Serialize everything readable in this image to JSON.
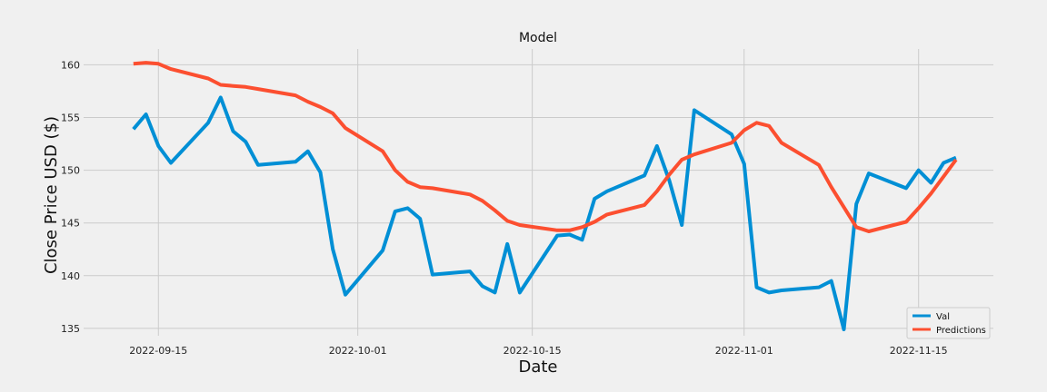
{
  "chart_data": {
    "type": "line",
    "title": "Model",
    "xlabel": "Date",
    "ylabel": "Close Price USD ($)",
    "ylim": [
      134.3,
      161.5
    ],
    "xlim": [
      "2022-09-09",
      "2022-11-21"
    ],
    "y_ticks": [
      135,
      140,
      145,
      150,
      155,
      160
    ],
    "x_ticks": [
      "2022-09-15",
      "2022-10-01",
      "2022-10-15",
      "2022-11-01",
      "2022-11-15"
    ],
    "grid": true,
    "legend_position": "lower-right",
    "x": [
      "2022-09-13",
      "2022-09-14",
      "2022-09-15",
      "2022-09-16",
      "2022-09-19",
      "2022-09-20",
      "2022-09-21",
      "2022-09-22",
      "2022-09-23",
      "2022-09-26",
      "2022-09-27",
      "2022-09-28",
      "2022-09-29",
      "2022-09-30",
      "2022-10-03",
      "2022-10-04",
      "2022-10-05",
      "2022-10-06",
      "2022-10-07",
      "2022-10-10",
      "2022-10-11",
      "2022-10-12",
      "2022-10-13",
      "2022-10-14",
      "2022-10-17",
      "2022-10-18",
      "2022-10-19",
      "2022-10-20",
      "2022-10-21",
      "2022-10-24",
      "2022-10-25",
      "2022-10-26",
      "2022-10-27",
      "2022-10-28",
      "2022-10-31",
      "2022-11-01",
      "2022-11-02",
      "2022-11-03",
      "2022-11-04",
      "2022-11-07",
      "2022-11-08",
      "2022-11-09",
      "2022-11-10",
      "2022-11-11",
      "2022-11-14",
      "2022-11-15",
      "2022-11-16",
      "2022-11-17",
      "2022-11-18"
    ],
    "series": [
      {
        "name": "Val",
        "color": "#008fd5",
        "values": [
          153.9,
          155.3,
          152.3,
          150.7,
          154.5,
          156.9,
          153.7,
          152.7,
          150.5,
          150.8,
          151.8,
          149.8,
          142.5,
          138.2,
          142.4,
          146.1,
          146.4,
          145.4,
          140.1,
          140.4,
          139.0,
          138.4,
          143.0,
          138.4,
          143.8,
          143.9,
          143.4,
          147.3,
          148.0,
          149.5,
          152.3,
          149.0,
          144.8,
          155.7,
          153.4,
          150.6,
          138.9,
          138.4,
          138.6,
          138.9,
          139.5,
          134.9,
          146.8,
          149.7,
          148.3,
          150.0,
          148.8,
          150.7,
          151.2
        ]
      },
      {
        "name": "Predictions",
        "color": "#fc4f30",
        "values": [
          160.1,
          160.2,
          160.1,
          159.6,
          158.7,
          158.1,
          158.0,
          157.9,
          157.7,
          157.1,
          156.5,
          156.0,
          155.4,
          154.0,
          151.8,
          150.0,
          148.9,
          148.4,
          148.3,
          147.7,
          147.1,
          146.2,
          145.2,
          144.8,
          144.3,
          144.3,
          144.6,
          145.1,
          145.8,
          146.7,
          148.0,
          149.6,
          151.0,
          151.5,
          152.6,
          153.8,
          154.5,
          154.2,
          152.6,
          150.5,
          148.4,
          146.5,
          144.6,
          144.2,
          145.1,
          146.4,
          147.8,
          149.4,
          151.0
        ]
      }
    ]
  }
}
